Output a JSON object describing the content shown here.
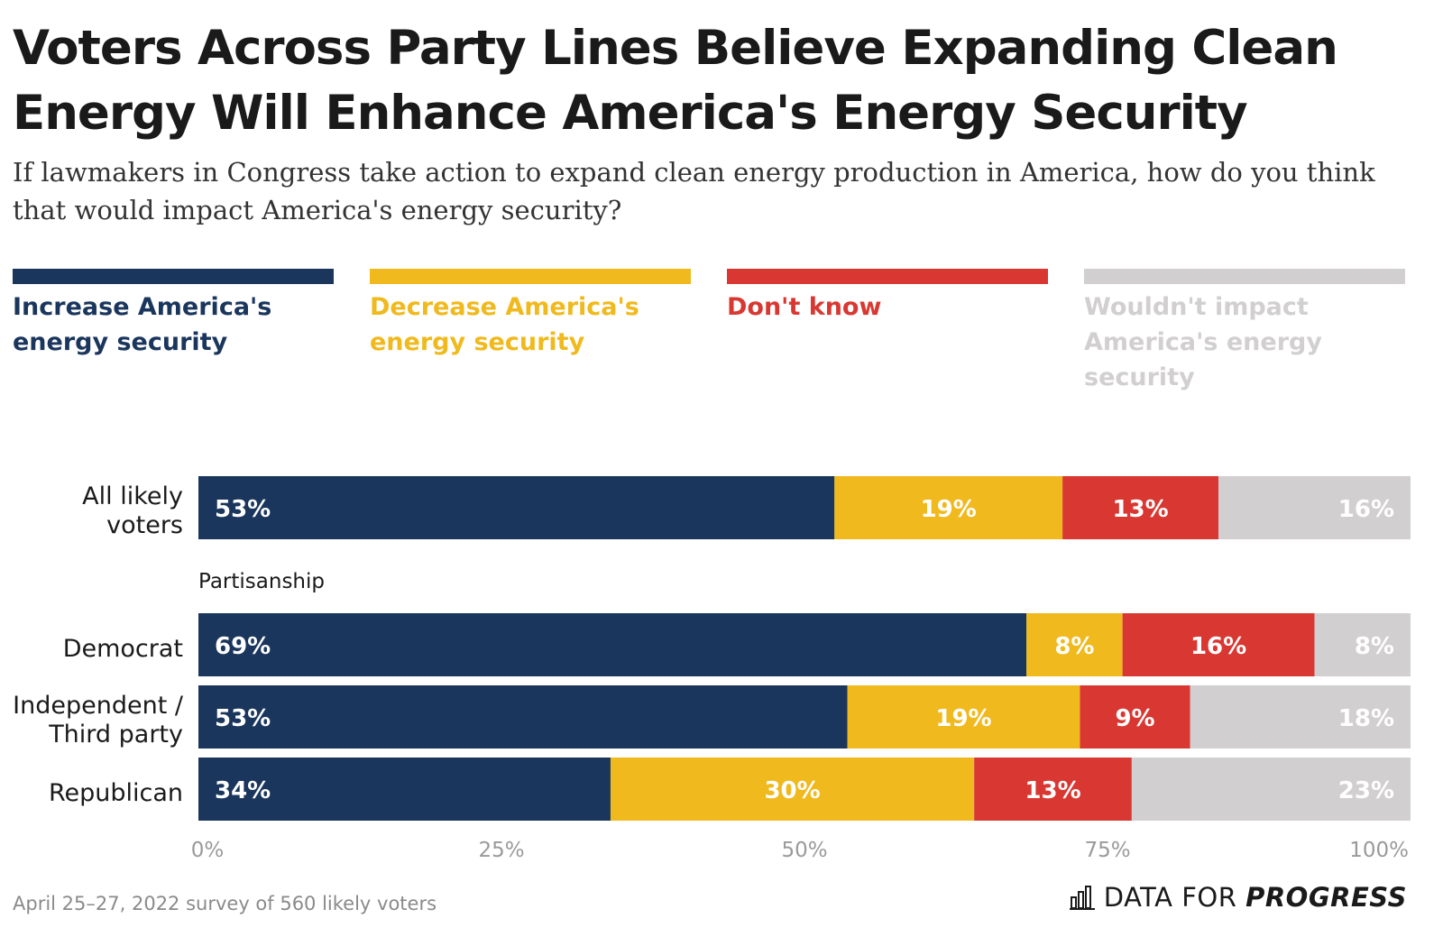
{
  "title": "Voters Across Party Lines Believe Expanding Clean Energy Will Enhance America's Energy Security",
  "subtitle": "If lawmakers in Congress take action to expand clean energy production in America, how do you think that would impact America's energy security?",
  "legend": [
    {
      "label": "Increase America's energy security",
      "color": "#1b365d"
    },
    {
      "label": "Decrease America's energy security",
      "color": "#f0b91e"
    },
    {
      "label": "Don't know",
      "color": "#d93832"
    },
    {
      "label": "Wouldn't impact America's energy security",
      "color": "#d2cfd1"
    }
  ],
  "group_label": "Partisanship",
  "footer": {
    "note": "April 25–27, 2022 survey of 560 likely voters",
    "brand_prefix": "DATA FOR ",
    "brand_strong": "PROGRESS"
  },
  "chart_data": {
    "type": "bar",
    "orientation": "horizontal",
    "stacked": true,
    "categories": [
      "All likely voters",
      "Democrat",
      "Independent / Third party",
      "Republican"
    ],
    "series": [
      {
        "name": "Increase America's energy security",
        "values": [
          53,
          69,
          53,
          34
        ],
        "labels": [
          "53%",
          "69%",
          "53%",
          "34%"
        ]
      },
      {
        "name": "Decrease America's energy security",
        "values": [
          19,
          8,
          19,
          30
        ],
        "labels": [
          "19%",
          "8%",
          "19%",
          "30%"
        ]
      },
      {
        "name": "Don't know",
        "values": [
          13,
          16,
          9,
          13
        ],
        "labels": [
          "13%",
          "16%",
          "9%",
          "13%"
        ]
      },
      {
        "name": "Wouldn't impact America's energy security",
        "values": [
          16,
          8,
          18,
          23
        ],
        "labels": [
          "16%",
          "8%",
          "18%",
          "23%"
        ]
      }
    ],
    "xlim": [
      0,
      100
    ],
    "x_ticks": [
      "0%",
      "25%",
      "50%",
      "75%",
      "100%"
    ],
    "grid": false,
    "legend_position": "top"
  }
}
